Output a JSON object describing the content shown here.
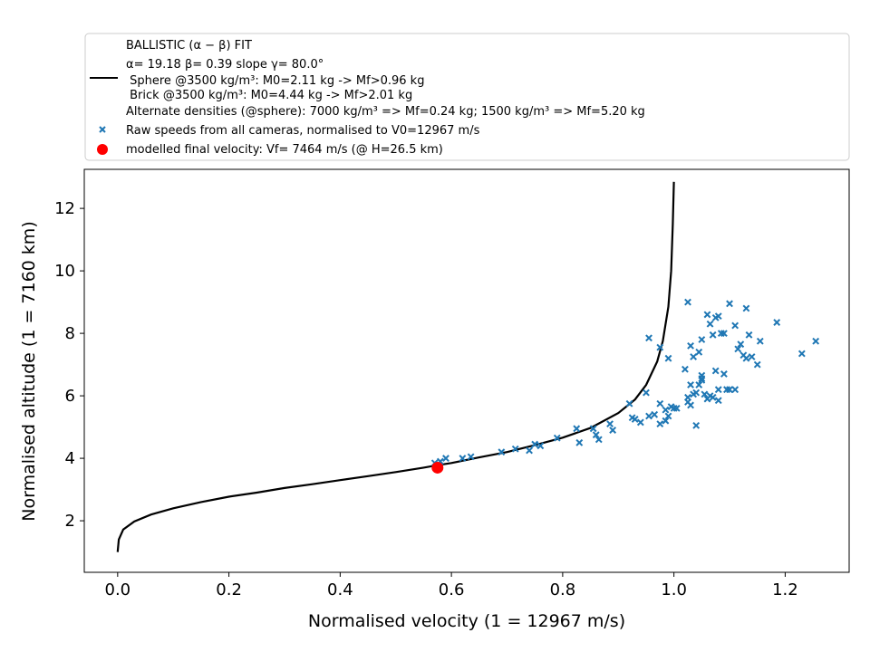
{
  "chart_data": {
    "type": "scatter",
    "xlabel": "Normalised velocity (1 = 12967 m/s)",
    "ylabel": "Normalised altitude (1 = 7160 km)",
    "xlim": [
      -0.06,
      1.315
    ],
    "ylim": [
      0.35,
      13.25
    ],
    "xticks": [
      0.0,
      0.2,
      0.4,
      0.6,
      0.8,
      1.0,
      1.2
    ],
    "xtick_labels": [
      "0.0",
      "0.2",
      "0.4",
      "0.6",
      "0.8",
      "1.0",
      "1.2"
    ],
    "yticks": [
      2,
      4,
      6,
      8,
      10,
      12
    ],
    "ytick_labels": [
      "2",
      "4",
      "6",
      "8",
      "10",
      "12"
    ],
    "grid": false,
    "legend_placement": "above plot",
    "legend": {
      "fit_title": "BALLISTIC (α − β) FIT",
      "fit_params": "α= 19.18     β= 0.39     slope γ= 80.0°",
      "sphere_line": " Sphere @3500 kg/m³: M0=2.11 kg -> Mf>0.96 kg",
      "brick_line": " Brick @3500 kg/m³: M0=4.44 kg -> Mf>2.01 kg",
      "alt_densities": "Alternate densities (@sphere): 7000 kg/m³ => Mf=0.24 kg; 1500 kg/m³ => Mf=5.20 kg",
      "raw_label": "Raw speeds from all cameras, normalised to V0=12967 m/s",
      "final_label": "modelled final velocity: Vf= 7464 m/s (@ H=26.5 km)"
    },
    "series": [
      {
        "kind": "line",
        "color": "#000000",
        "x": [
          0.0,
          0.002,
          0.01,
          0.03,
          0.06,
          0.1,
          0.15,
          0.2,
          0.25,
          0.3,
          0.35,
          0.4,
          0.45,
          0.5,
          0.55,
          0.575,
          0.6,
          0.65,
          0.7,
          0.75,
          0.8,
          0.85,
          0.9,
          0.93,
          0.95,
          0.97,
          0.98,
          0.99,
          0.995,
          0.998,
          1.0
        ],
        "y": [
          1.0,
          1.4,
          1.72,
          1.98,
          2.2,
          2.4,
          2.6,
          2.77,
          2.9,
          3.05,
          3.17,
          3.3,
          3.43,
          3.56,
          3.7,
          3.78,
          3.85,
          4.03,
          4.2,
          4.42,
          4.66,
          4.97,
          5.45,
          5.88,
          6.35,
          7.1,
          7.75,
          8.85,
          10.0,
          11.5,
          12.85
        ]
      },
      {
        "kind": "scatter",
        "marker": "x",
        "color": "#1f77b4",
        "x": [
          0.57,
          0.58,
          0.59,
          0.62,
          0.635,
          0.69,
          0.715,
          0.74,
          0.75,
          0.76,
          0.79,
          0.825,
          0.83,
          0.855,
          0.86,
          0.865,
          0.885,
          0.89,
          0.92,
          0.925,
          0.93,
          0.94,
          0.95,
          0.955,
          0.965,
          0.975,
          0.975,
          0.985,
          0.985,
          0.99,
          0.995,
          1.0,
          1.005,
          1.025,
          1.025,
          1.03,
          1.03,
          1.035,
          1.04,
          1.045,
          1.05,
          1.05,
          1.05,
          1.055,
          1.06,
          1.065,
          1.07,
          1.075,
          1.075,
          1.08,
          1.08,
          1.085,
          1.09,
          1.095,
          1.1,
          1.11,
          1.115,
          1.12,
          1.125,
          1.13,
          1.135,
          1.14,
          1.15,
          1.155,
          1.185,
          1.23,
          1.255,
          1.03,
          1.045,
          1.065,
          1.09,
          1.1,
          1.035,
          1.05,
          1.07,
          0.99,
          0.955,
          0.975,
          1.02,
          1.06,
          1.11,
          1.13,
          1.08,
          1.04,
          1.025
        ],
        "y": [
          3.85,
          3.9,
          4.0,
          4.0,
          4.05,
          4.2,
          4.3,
          4.25,
          4.45,
          4.4,
          4.65,
          4.95,
          4.5,
          4.95,
          4.75,
          4.6,
          5.1,
          4.9,
          5.75,
          5.3,
          5.25,
          5.15,
          6.1,
          5.35,
          5.4,
          5.75,
          5.1,
          5.2,
          5.55,
          5.35,
          5.65,
          5.6,
          5.6,
          5.95,
          5.8,
          6.35,
          5.7,
          6.05,
          6.1,
          6.35,
          6.5,
          6.65,
          6.55,
          6.05,
          5.9,
          6.0,
          5.95,
          6.8,
          8.5,
          6.2,
          5.85,
          8.0,
          8.0,
          6.2,
          8.95,
          6.2,
          7.5,
          7.65,
          7.3,
          7.2,
          7.95,
          7.25,
          7.0,
          7.75,
          8.35,
          7.35,
          7.75,
          7.6,
          7.4,
          8.3,
          6.7,
          6.2,
          7.25,
          7.8,
          7.95,
          7.2,
          7.85,
          7.55,
          6.85,
          8.6,
          8.25,
          8.8,
          8.55,
          5.05,
          9.0
        ],
        "note_series": "raw"
      },
      {
        "kind": "scatter",
        "marker": "o",
        "color": "#ff0000",
        "x": [
          0.575
        ],
        "y": [
          3.7
        ]
      }
    ]
  }
}
